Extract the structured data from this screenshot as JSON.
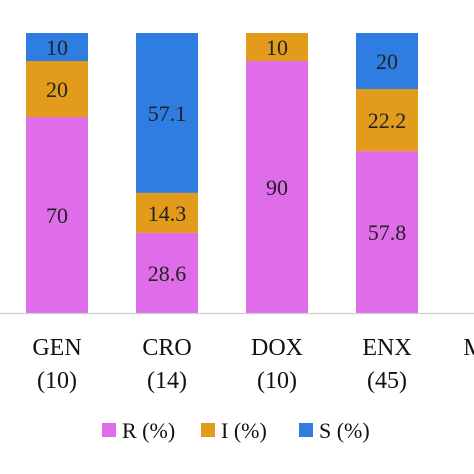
{
  "chart_data": {
    "type": "bar",
    "stacked": true,
    "normalized_to": 100,
    "categories": [
      "GEN",
      "CRO",
      "DOX",
      "ENX",
      "M"
    ],
    "sample_sizes": [
      "(10)",
      "(14)",
      "(10)",
      "(45)",
      ""
    ],
    "series": [
      {
        "name": "R (%)",
        "color": "#df6ce8",
        "values": [
          70,
          28.6,
          90,
          57.8,
          null
        ]
      },
      {
        "name": "I (%)",
        "color": "#e39b1b",
        "values": [
          20,
          14.3,
          10,
          22.2,
          null
        ]
      },
      {
        "name": "S (%)",
        "color": "#2f7de1",
        "values": [
          10,
          57.1,
          null,
          20,
          null
        ]
      }
    ],
    "data_labels": [
      [
        "70",
        "20",
        "10"
      ],
      [
        "28.6",
        "14.3",
        "57.1"
      ],
      [
        "90",
        "10",
        ""
      ],
      [
        "57.8",
        "22.2",
        "20"
      ],
      [
        "",
        "",
        ""
      ]
    ],
    "ylim": [
      0,
      100
    ],
    "legend_position": "bottom",
    "grid": false,
    "title": "",
    "xlabel": "",
    "ylabel": ""
  }
}
